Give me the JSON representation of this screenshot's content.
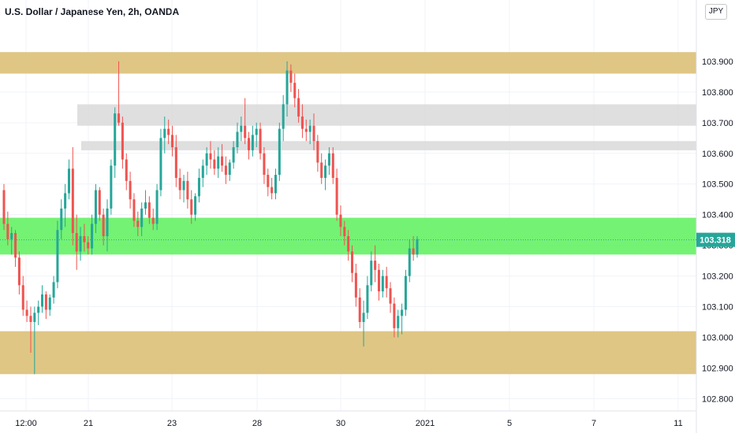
{
  "title": "U.S. Dollar / Japanese Yen, 2h, OANDA",
  "currency_badge": "JPY",
  "price_tag": "103.318",
  "colors": {
    "up": "#26a69a",
    "down": "#ef5350",
    "zone_gold": "#dcc077",
    "zone_grey": "#d9d9d9",
    "zone_green": "#5cf05c",
    "price_tag_bg": "#26a69a"
  },
  "chart_data": {
    "type": "candlestick",
    "y_axis": {
      "range": [
        102.76,
        104.1
      ],
      "ticks": [
        "102.800",
        "102.900",
        "103.000",
        "103.100",
        "103.200",
        "103.300",
        "103.400",
        "103.500",
        "103.600",
        "103.700",
        "103.800",
        "103.900"
      ]
    },
    "x_axis": {
      "labels": [
        "12:00",
        "21",
        "23",
        "28",
        "30",
        "2021",
        "5",
        "7",
        "11"
      ]
    },
    "zones": [
      {
        "kind": "gold",
        "from": 103.86,
        "to": 103.93
      },
      {
        "kind": "grey",
        "from": 103.69,
        "to": 103.76
      },
      {
        "kind": "grey",
        "from": 103.61,
        "to": 103.64
      },
      {
        "kind": "green",
        "from": 103.27,
        "to": 103.39
      },
      {
        "kind": "gold",
        "from": 102.88,
        "to": 103.02
      }
    ],
    "last_price": 103.318,
    "candles": [
      [
        103.48,
        103.5,
        103.35,
        103.37
      ],
      [
        103.37,
        103.41,
        103.3,
        103.32
      ],
      [
        103.32,
        103.36,
        103.27,
        103.34
      ],
      [
        103.34,
        103.35,
        103.23,
        103.26
      ],
      [
        103.26,
        103.28,
        103.14,
        103.17
      ],
      [
        103.17,
        103.2,
        103.07,
        103.09
      ],
      [
        103.09,
        103.12,
        103.05,
        103.07
      ],
      [
        103.07,
        103.1,
        102.95,
        103.05
      ],
      [
        103.05,
        103.1,
        102.88,
        103.08
      ],
      [
        103.08,
        103.12,
        103.04,
        103.1
      ],
      [
        103.1,
        103.17,
        103.08,
        103.14
      ],
      [
        103.14,
        103.15,
        103.06,
        103.09
      ],
      [
        103.09,
        103.14,
        103.07,
        103.13
      ],
      [
        103.13,
        103.2,
        103.11,
        103.18
      ],
      [
        103.18,
        103.38,
        103.16,
        103.35
      ],
      [
        103.35,
        103.45,
        103.32,
        103.42
      ],
      [
        103.42,
        103.5,
        103.36,
        103.47
      ],
      [
        103.47,
        103.58,
        103.45,
        103.55
      ],
      [
        103.55,
        103.62,
        103.3,
        103.34
      ],
      [
        103.34,
        103.4,
        103.22,
        103.28
      ],
      [
        103.28,
        103.36,
        103.25,
        103.33
      ],
      [
        103.33,
        103.37,
        103.28,
        103.31
      ],
      [
        103.31,
        103.33,
        103.27,
        103.29
      ],
      [
        103.29,
        103.4,
        103.27,
        103.37
      ],
      [
        103.37,
        103.5,
        103.34,
        103.48
      ],
      [
        103.48,
        103.49,
        103.38,
        103.4
      ],
      [
        103.4,
        103.42,
        103.3,
        103.33
      ],
      [
        103.33,
        103.45,
        103.28,
        103.42
      ],
      [
        103.42,
        103.58,
        103.4,
        103.56
      ],
      [
        103.56,
        103.75,
        103.52,
        103.73
      ],
      [
        103.73,
        103.9,
        103.69,
        103.7
      ],
      [
        103.7,
        103.72,
        103.55,
        103.58
      ],
      [
        103.58,
        103.6,
        103.48,
        103.51
      ],
      [
        103.51,
        103.54,
        103.42,
        103.45
      ],
      [
        103.45,
        103.47,
        103.36,
        103.38
      ],
      [
        103.38,
        103.41,
        103.33,
        103.36
      ],
      [
        103.36,
        103.44,
        103.33,
        103.42
      ],
      [
        103.42,
        103.48,
        103.4,
        103.44
      ],
      [
        103.44,
        103.46,
        103.37,
        103.39
      ],
      [
        103.39,
        103.42,
        103.35,
        103.37
      ],
      [
        103.37,
        103.5,
        103.35,
        103.48
      ],
      [
        103.48,
        103.68,
        103.46,
        103.65
      ],
      [
        103.65,
        103.72,
        103.6,
        103.68
      ],
      [
        103.68,
        103.71,
        103.63,
        103.66
      ],
      [
        103.66,
        103.69,
        103.59,
        103.62
      ],
      [
        103.62,
        103.66,
        103.49,
        103.52
      ],
      [
        103.52,
        103.55,
        103.45,
        103.48
      ],
      [
        103.48,
        103.53,
        103.44,
        103.51
      ],
      [
        103.51,
        103.54,
        103.42,
        103.45
      ],
      [
        103.45,
        103.48,
        103.37,
        103.4
      ],
      [
        103.4,
        103.47,
        103.38,
        103.46
      ],
      [
        103.46,
        103.55,
        103.44,
        103.52
      ],
      [
        103.52,
        103.58,
        103.49,
        103.56
      ],
      [
        103.56,
        103.62,
        103.53,
        103.6
      ],
      [
        103.6,
        103.64,
        103.55,
        103.58
      ],
      [
        103.58,
        103.61,
        103.53,
        103.55
      ],
      [
        103.55,
        103.62,
        103.52,
        103.59
      ],
      [
        103.59,
        103.63,
        103.54,
        103.56
      ],
      [
        103.56,
        103.59,
        103.5,
        103.53
      ],
      [
        103.53,
        103.58,
        103.51,
        103.57
      ],
      [
        103.57,
        103.64,
        103.55,
        103.62
      ],
      [
        103.62,
        103.7,
        103.6,
        103.67
      ],
      [
        103.67,
        103.72,
        103.64,
        103.69
      ],
      [
        103.69,
        103.78,
        103.63,
        103.65
      ],
      [
        103.65,
        103.67,
        103.58,
        103.61
      ],
      [
        103.61,
        103.69,
        103.59,
        103.66
      ],
      [
        103.66,
        103.7,
        103.62,
        103.68
      ],
      [
        103.68,
        103.7,
        103.58,
        103.6
      ],
      [
        103.6,
        103.62,
        103.5,
        103.53
      ],
      [
        103.53,
        103.55,
        103.46,
        103.49
      ],
      [
        103.49,
        103.52,
        103.45,
        103.47
      ],
      [
        103.47,
        103.55,
        103.45,
        103.53
      ],
      [
        103.53,
        103.7,
        103.51,
        103.68
      ],
      [
        103.68,
        103.79,
        103.64,
        103.76
      ],
      [
        103.76,
        103.9,
        103.72,
        103.87
      ],
      [
        103.87,
        103.89,
        103.8,
        103.83
      ],
      [
        103.83,
        103.86,
        103.75,
        103.78
      ],
      [
        103.78,
        103.81,
        103.7,
        103.72
      ],
      [
        103.72,
        103.76,
        103.65,
        103.68
      ],
      [
        103.68,
        103.71,
        103.64,
        103.67
      ],
      [
        103.67,
        103.71,
        103.63,
        103.69
      ],
      [
        103.69,
        103.73,
        103.61,
        103.64
      ],
      [
        103.64,
        103.66,
        103.54,
        103.57
      ],
      [
        103.57,
        103.6,
        103.5,
        103.52
      ],
      [
        103.52,
        103.58,
        103.48,
        103.56
      ],
      [
        103.56,
        103.62,
        103.53,
        103.6
      ],
      [
        103.6,
        103.62,
        103.5,
        103.52
      ],
      [
        103.52,
        103.55,
        103.38,
        103.4
      ],
      [
        103.4,
        103.43,
        103.33,
        103.36
      ],
      [
        103.36,
        103.38,
        103.3,
        103.33
      ],
      [
        103.33,
        103.35,
        103.25,
        103.28
      ],
      [
        103.28,
        103.3,
        103.18,
        103.21
      ],
      [
        103.21,
        103.24,
        103.1,
        103.13
      ],
      [
        103.13,
        103.16,
        103.03,
        103.05
      ],
      [
        103.05,
        103.12,
        102.97,
        103.08
      ],
      [
        103.08,
        103.2,
        103.06,
        103.17
      ],
      [
        103.17,
        103.28,
        103.15,
        103.25
      ],
      [
        103.25,
        103.3,
        103.18,
        103.22
      ],
      [
        103.22,
        103.24,
        103.12,
        103.15
      ],
      [
        103.15,
        103.22,
        103.13,
        103.2
      ],
      [
        103.2,
        103.23,
        103.13,
        103.16
      ],
      [
        103.16,
        103.18,
        103.08,
        103.11
      ],
      [
        103.11,
        103.13,
        103.0,
        103.03
      ],
      [
        103.03,
        103.09,
        103.0,
        103.07
      ],
      [
        103.07,
        103.11,
        103.01,
        103.09
      ],
      [
        103.09,
        103.22,
        103.07,
        103.2
      ],
      [
        103.2,
        103.32,
        103.18,
        103.29
      ],
      [
        103.29,
        103.33,
        103.25,
        103.27
      ],
      [
        103.27,
        103.33,
        103.26,
        103.32
      ]
    ]
  }
}
